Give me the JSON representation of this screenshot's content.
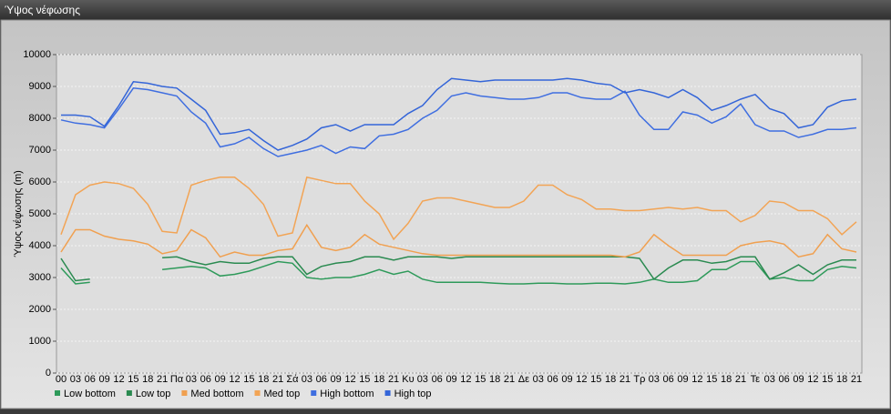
{
  "chart_data": {
    "type": "line",
    "title": "Ύψος νέφωσης",
    "ylabel": "Ύψος νέφωσης (m)",
    "categories": [
      "00",
      "03",
      "06",
      "09",
      "12",
      "15",
      "18",
      "21",
      "Πα",
      "03",
      "06",
      "09",
      "12",
      "15",
      "18",
      "21",
      "Σά",
      "03",
      "06",
      "09",
      "12",
      "15",
      "18",
      "21",
      "Κυ",
      "03",
      "06",
      "09",
      "12",
      "15",
      "18",
      "21",
      "Δε",
      "03",
      "06",
      "09",
      "12",
      "15",
      "18",
      "21",
      "Τρ",
      "03",
      "06",
      "09",
      "12",
      "15",
      "18",
      "21",
      "Τε",
      "03",
      "06",
      "09",
      "12",
      "15",
      "18",
      "21"
    ],
    "ylim": [
      0,
      10000
    ],
    "yticks": [
      0,
      1000,
      2000,
      3000,
      4000,
      5000,
      6000,
      7000,
      8000,
      9000,
      10000
    ],
    "grid": true,
    "series": [
      {
        "name": "Low bottom",
        "color": "#2e9a5a",
        "values": [
          3300,
          2800,
          2850,
          null,
          null,
          null,
          null,
          3250,
          3300,
          3350,
          3300,
          3050,
          3100,
          3200,
          3350,
          3500,
          3450,
          3000,
          2950,
          3000,
          3000,
          3100,
          3250,
          3100,
          3200,
          2950,
          2850,
          2850,
          2850,
          2850,
          2820,
          2800,
          2800,
          2820,
          2820,
          2800,
          2800,
          2820,
          2820,
          2800,
          2850,
          2950,
          2850,
          2850,
          2900,
          3250,
          3250,
          3500,
          3500,
          2950,
          3000,
          2900,
          2900,
          3250,
          3350,
          3300
        ]
      },
      {
        "name": "Low top",
        "color": "#2a8a50",
        "values": [
          3600,
          2900,
          2950,
          null,
          null,
          null,
          null,
          3620,
          3650,
          3500,
          3400,
          3500,
          3450,
          3450,
          3600,
          3650,
          3650,
          3100,
          3350,
          3450,
          3500,
          3650,
          3650,
          3550,
          3650,
          3650,
          3650,
          3600,
          3650,
          3650,
          3650,
          3650,
          3650,
          3650,
          3650,
          3650,
          3650,
          3650,
          3650,
          3650,
          3600,
          2950,
          3300,
          3550,
          3550,
          3450,
          3500,
          3650,
          3650,
          2950,
          3150,
          3400,
          3100,
          3400,
          3550,
          3550
        ]
      },
      {
        "name": "Med bottom",
        "color": "#f0a050",
        "values": [
          3800,
          4500,
          4500,
          4300,
          4200,
          4150,
          4050,
          3750,
          3850,
          4500,
          4250,
          3650,
          3800,
          3700,
          3700,
          3850,
          3900,
          4650,
          3950,
          3850,
          3950,
          4350,
          4050,
          3950,
          3850,
          3750,
          3700,
          3700,
          3700,
          3700,
          3700,
          3700,
          3700,
          3700,
          3700,
          3700,
          3700,
          3700,
          3700,
          3650,
          3800,
          4350,
          4000,
          3700,
          3700,
          3700,
          3700,
          4000,
          4100,
          4150,
          4050,
          3650,
          3750,
          4350,
          3900,
          3800
        ]
      },
      {
        "name": "Med top",
        "color": "#f2a455",
        "values": [
          4350,
          5600,
          5900,
          6000,
          5950,
          5800,
          5300,
          4450,
          4400,
          5900,
          6050,
          6150,
          6150,
          5800,
          5300,
          4300,
          4400,
          6150,
          6050,
          5950,
          5950,
          5400,
          5000,
          4200,
          4700,
          5400,
          5500,
          5500,
          5400,
          5300,
          5200,
          5200,
          5400,
          5900,
          5900,
          5600,
          5450,
          5150,
          5150,
          5100,
          5100,
          5150,
          5200,
          5150,
          5200,
          5100,
          5100,
          4750,
          4950,
          5400,
          5350,
          5100,
          5100,
          4850,
          4350,
          4750
        ]
      },
      {
        "name": "High bottom",
        "color": "#3f6ee0",
        "values": [
          7950,
          7850,
          7800,
          7700,
          8300,
          8950,
          8900,
          8800,
          8700,
          8200,
          7850,
          7100,
          7200,
          7400,
          7050,
          6800,
          6900,
          7000,
          7150,
          6900,
          7100,
          7050,
          7450,
          7500,
          7650,
          8000,
          8250,
          8700,
          8800,
          8700,
          8650,
          8600,
          8600,
          8650,
          8800,
          8800,
          8650,
          8600,
          8600,
          8850,
          8100,
          7650,
          7650,
          8200,
          8100,
          7850,
          8050,
          8450,
          7800,
          7600,
          7600,
          7400,
          7500,
          7650,
          7650,
          7700
        ]
      },
      {
        "name": "High top",
        "color": "#3465d8",
        "values": [
          8100,
          8100,
          8050,
          7750,
          8400,
          9150,
          9100,
          9000,
          8950,
          8600,
          8250,
          7500,
          7550,
          7650,
          7300,
          7000,
          7150,
          7350,
          7700,
          7800,
          7600,
          7800,
          7800,
          7800,
          8150,
          8400,
          8900,
          9250,
          9200,
          9150,
          9200,
          9200,
          9200,
          9200,
          9200,
          9250,
          9200,
          9100,
          9050,
          8800,
          8900,
          8800,
          8650,
          8900,
          8650,
          8250,
          8400,
          8600,
          8750,
          8300,
          8150,
          7700,
          7800,
          8350,
          8550,
          8600
        ]
      }
    ]
  }
}
